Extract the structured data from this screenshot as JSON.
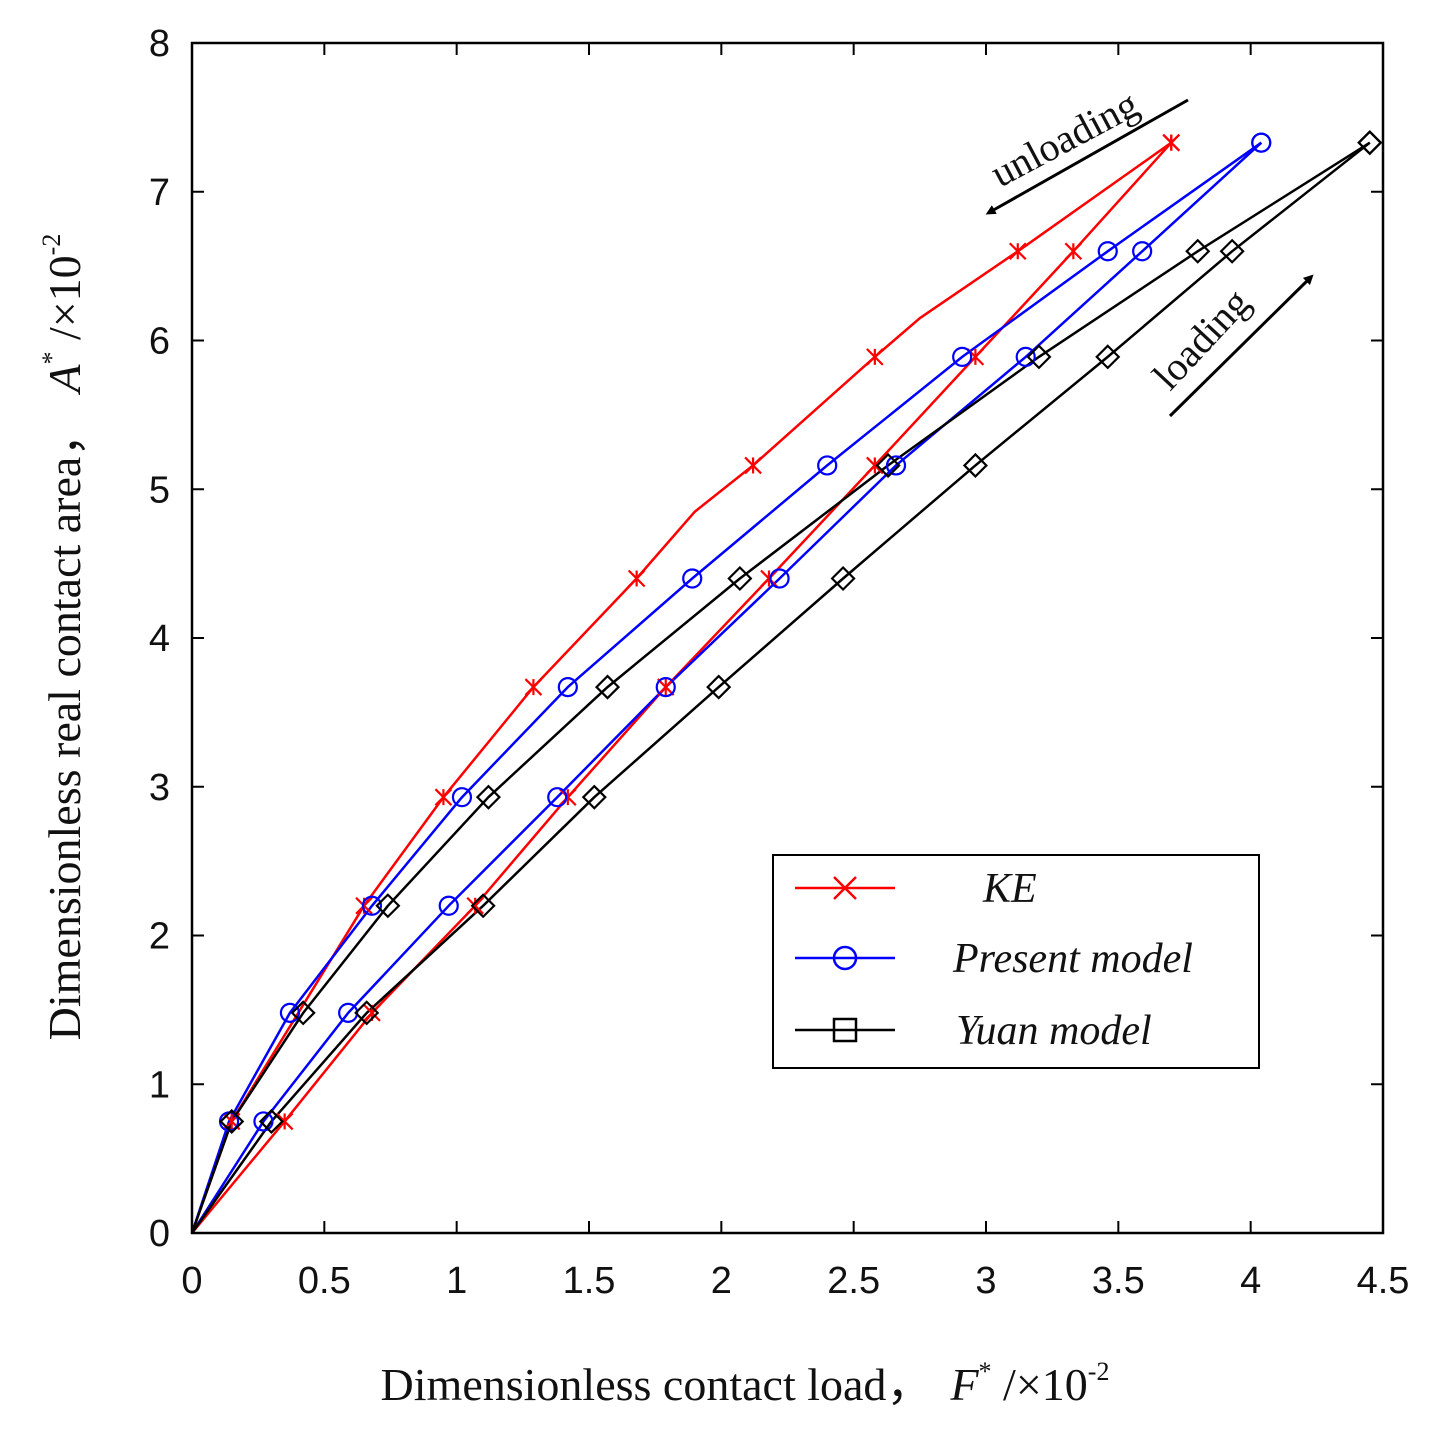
{
  "chart_data": {
    "type": "line",
    "xlabel": "Dimensionless contact load，",
    "xlabel_symbol": "F",
    "xlabel_sup": "*",
    "xlabel_unit": " /×10",
    "xlabel_exp": "-2",
    "ylabel": "Dimensionless real contact area，",
    "ylabel_symbol": "A",
    "ylabel_sup": "*",
    "ylabel_unit": " /×10",
    "ylabel_exp": "-2",
    "xlim": [
      0,
      4.5
    ],
    "ylim": [
      0,
      8
    ],
    "xticks": [
      0,
      0.5,
      1,
      1.5,
      2,
      2.5,
      3,
      3.5,
      4,
      4.5
    ],
    "xtick_labels": [
      "0",
      "0.5",
      "1",
      "1.5",
      "2",
      "2.5",
      "3",
      "3.5",
      "4",
      "4.5"
    ],
    "yticks": [
      0,
      1,
      2,
      3,
      4,
      5,
      6,
      7,
      8
    ],
    "ytick_labels": [
      "0",
      "1",
      "2",
      "3",
      "4",
      "5",
      "6",
      "7",
      "8"
    ],
    "grid": false,
    "legend_position": "lower-right",
    "annotations": [
      {
        "text": "unloading",
        "direction": "down-left",
        "near": "top-right"
      },
      {
        "text": "loading",
        "direction": "up-right",
        "near": "right"
      }
    ],
    "series": [
      {
        "name": "KE",
        "color": "#ff0000",
        "marker": "x",
        "loading": {
          "x": [
            0,
            0.35,
            0.68,
            1.07,
            1.42,
            1.79,
            2.18,
            2.58,
            2.96,
            3.33,
            3.7
          ],
          "y": [
            0,
            0.75,
            1.48,
            2.2,
            2.93,
            3.67,
            4.4,
            5.16,
            5.89,
            6.6,
            7.33
          ]
        },
        "unloading": {
          "x": [
            3.7,
            3.12,
            2.75,
            2.58,
            2.12,
            1.9,
            1.68,
            1.29,
            0.95,
            0.65,
            0.15,
            0
          ],
          "y": [
            7.33,
            6.6,
            6.15,
            5.89,
            5.16,
            4.85,
            4.4,
            3.67,
            2.93,
            2.2,
            0.75,
            0
          ]
        },
        "unloading_markers_x": [
          3.7,
          3.12,
          2.58,
          2.12,
          1.68,
          1.29,
          0.95,
          0.65,
          0.15
        ],
        "unloading_markers_y": [
          7.33,
          6.6,
          5.89,
          5.16,
          4.4,
          3.67,
          2.93,
          2.2,
          0.75
        ]
      },
      {
        "name": "Present model",
        "color": "#0000ff",
        "marker": "o",
        "loading": {
          "x": [
            0,
            0.27,
            0.59,
            0.97,
            1.38,
            1.79,
            2.22,
            2.66,
            3.15,
            3.59,
            4.04
          ],
          "y": [
            0,
            0.75,
            1.48,
            2.2,
            2.93,
            3.67,
            4.4,
            5.16,
            5.89,
            6.6,
            7.33
          ]
        },
        "unloading": {
          "x": [
            4.04,
            3.46,
            2.91,
            2.4,
            1.89,
            1.42,
            1.02,
            0.68,
            0.37,
            0.14,
            0
          ],
          "y": [
            7.33,
            6.6,
            5.89,
            5.16,
            4.4,
            3.67,
            2.93,
            2.2,
            1.48,
            0.75,
            0
          ]
        }
      },
      {
        "name": "Yuan model",
        "color": "#000000",
        "marker": "D",
        "legend_marker": "s",
        "loading": {
          "x": [
            0,
            0.3,
            0.66,
            1.1,
            1.52,
            1.99,
            2.46,
            2.96,
            3.46,
            3.93,
            4.45
          ],
          "y": [
            0,
            0.75,
            1.48,
            2.2,
            2.93,
            3.67,
            4.4,
            5.16,
            5.89,
            6.6,
            7.33
          ]
        },
        "unloading": {
          "x": [
            4.45,
            3.8,
            3.2,
            2.63,
            2.07,
            1.57,
            1.12,
            0.74,
            0.42,
            0.15,
            0
          ],
          "y": [
            7.33,
            6.6,
            5.89,
            5.16,
            4.4,
            3.67,
            2.93,
            2.2,
            1.48,
            0.75,
            0
          ]
        }
      }
    ],
    "legend_entries": [
      "KE",
      "Present model",
      "Yuan model"
    ]
  }
}
